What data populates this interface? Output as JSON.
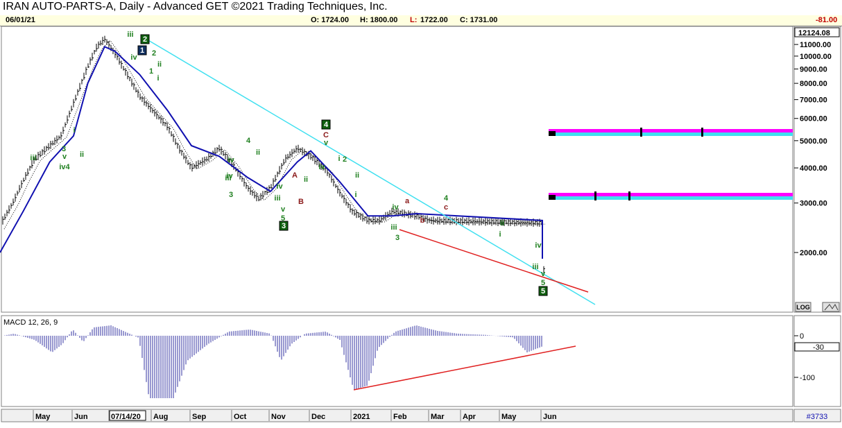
{
  "title": "IRAN AUTO-PARTS-A, Daily - Advanced GET ©2021 Trading Techniques, Inc.",
  "info": {
    "date": "06/01/21",
    "open": "O: 1724.00",
    "high": "H: 1800.00",
    "low_label": "L:",
    "low_value": "1722.00",
    "close": "C: 1731.00",
    "change": "-81.00"
  },
  "chart_data": [
    {
      "type": "line",
      "scale": "log",
      "y_ticks": [
        "12124.08",
        "11000.00",
        "10000.00",
        "9000.00",
        "8000.00",
        "7000.00",
        "6000.00",
        "5000.00",
        "4000.00",
        "3000.00",
        "2000.00"
      ],
      "current_value_label": "12124.08",
      "log_button": "LOG",
      "series": [
        {
          "name": "",
          "color": "#000000",
          "x": [
            "Apr 20",
            "May 1",
            "May 10",
            "May 20",
            "Jun 1",
            "Jun 10",
            "Jun 20",
            "Jul 1",
            "Jul 8",
            "Jul 14",
            "Jul 22",
            "Aug 1",
            "Aug 10",
            "Aug 20",
            "Sep 1",
            "Sep 10",
            "Sep 20",
            "Oct 1",
            "Oct 10",
            "Oct 20",
            "Nov 1",
            "Nov 10",
            "Nov 20",
            "Dec 1",
            "Dec 10",
            "Dec 20",
            "Jan 1",
            "Jan 10",
            "Jan 20",
            "Feb 1",
            "Feb 10",
            "Feb 20",
            "Mar 1",
            "Mar 10",
            "Mar 20",
            "Apr 1",
            "Apr 10",
            "Apr 20",
            "May 1",
            "May 10",
            "May 20",
            "Jun 1"
          ],
          "values": [
            2500,
            3000,
            3600,
            4300,
            4800,
            5200,
            6800,
            9200,
            10800,
            11500,
            10200,
            8500,
            7200,
            6400,
            5600,
            4700,
            4000,
            4300,
            4700,
            4100,
            3400,
            3100,
            3400,
            4300,
            4700,
            4400,
            3900,
            3300,
            2800,
            2600,
            2600,
            2800,
            2750,
            2700,
            2600,
            2550,
            2550,
            2500,
            2200,
            1900,
            1700,
            1731
          ]
        },
        {
          "name": "",
          "color": "#1010b0",
          "x": [
            "Apr 20",
            "May 10",
            "Jun 1",
            "Jun 20",
            "Jul 1",
            "Jul 14",
            "Jul 22",
            "Aug 10",
            "Sep 1",
            "Sep 20",
            "Oct 10",
            "Nov 1",
            "Nov 20",
            "Dec 10",
            "Dec 20",
            "Jan 10",
            "Feb 1",
            "Feb 20",
            "Mar 10",
            "Apr 10",
            "May 1",
            "May 10",
            "Jun 1"
          ],
          "values": [
            2000,
            2800,
            4200,
            5200,
            8000,
            10800,
            10400,
            8600,
            6400,
            4800,
            4400,
            3700,
            3300,
            4200,
            4600,
            3600,
            2700,
            2700,
            2750,
            2600,
            2600,
            2500,
            1900
          ]
        }
      ],
      "wave_labels": [
        "iii",
        "v",
        "iv4",
        "3",
        "i",
        "ii",
        "iii",
        "iv",
        "1",
        "2",
        "i",
        "ii",
        "iv",
        "4",
        "ii",
        "iii",
        "iv",
        "3",
        "v",
        "5",
        "A",
        "B",
        "iv",
        "ii",
        "iii",
        "v",
        "iv",
        "4",
        "C",
        "i",
        "2",
        "ii",
        "i",
        "iv",
        "iii",
        "3",
        "a",
        "b",
        "c",
        "4",
        "ii",
        "i",
        "iv",
        "iii",
        "v",
        "5",
        "5",
        "3",
        "1",
        "2"
      ],
      "x_ticks": [
        "May",
        "Jun",
        "07/14/20",
        "Aug",
        "Sep",
        "Oct",
        "Nov",
        "Dec",
        "2021",
        "Feb",
        "Mar",
        "Apr",
        "May",
        "Jun"
      ]
    },
    {
      "type": "bar",
      "title": "MACD 12, 26, 9",
      "y_ticks": [
        "0",
        "-100"
      ],
      "current_value_label": "-30"
    }
  ],
  "footer_code": "#3733"
}
